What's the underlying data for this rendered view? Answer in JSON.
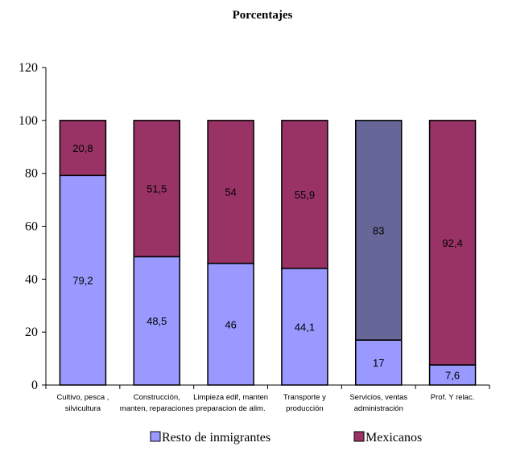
{
  "chart_data": {
    "type": "bar",
    "stacked": true,
    "title": "Porcentajes",
    "ylim": [
      0,
      120
    ],
    "yticks": [
      0,
      20,
      40,
      60,
      80,
      100,
      120
    ],
    "grid": false,
    "legend_position": "bottom",
    "categories": [
      [
        "Cultivo, pesca ,",
        "silvicultura"
      ],
      [
        "Construcción,",
        "manten, reparaciones"
      ],
      [
        "Limpieza edif, manten",
        "preparacion de alim."
      ],
      [
        "Transporte y",
        "producción"
      ],
      [
        "Servicios, ventas",
        "administración"
      ],
      [
        "Prof. Y relac."
      ]
    ],
    "series": [
      {
        "name": "Resto de inmigrantes",
        "color": "#9999ff",
        "values": [
          79.2,
          48.5,
          46,
          44.1,
          17,
          7.6
        ],
        "labels": [
          "79,2",
          "48,5",
          "46",
          "44,1",
          "17",
          "7,6"
        ]
      },
      {
        "name": "Mexicanos",
        "color": "#993366",
        "values": [
          20.8,
          51.5,
          54,
          55.9,
          83,
          92.4
        ],
        "labels": [
          "20,8",
          "51,5",
          "54",
          "55,9",
          "83",
          "92,4"
        ]
      }
    ],
    "highlight": {
      "index": 4,
      "series": 1,
      "color": "#666699"
    }
  }
}
